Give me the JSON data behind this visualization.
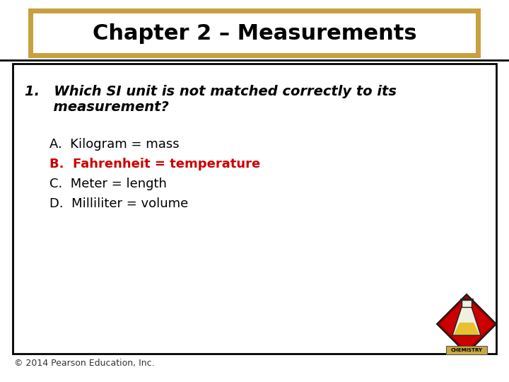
{
  "title": "Chapter 2 – Measurements",
  "title_fontsize": 22,
  "title_color": "#000000",
  "title_box_border_color": "#C8A040",
  "title_box_bg": "#FFFFFF",
  "question_line1": "1.   Which SI unit is not matched correctly to its",
  "question_line2": "      measurement?",
  "question_fontsize": 14,
  "question_color": "#000000",
  "answers": [
    {
      "label": "A.",
      "text": "  Kilogram = mass",
      "color": "#000000",
      "bold": false
    },
    {
      "label": "B.",
      "text": "  Fahrenheit = temperature",
      "color": "#CC0000",
      "bold": true
    },
    {
      "label": "C.",
      "text": "  Meter = length",
      "color": "#000000",
      "bold": false
    },
    {
      "label": "D.",
      "text": "  Milliliter = volume",
      "color": "#000000",
      "bold": false
    }
  ],
  "answer_fontsize": 13,
  "content_box_border_color": "#000000",
  "content_box_bg": "#FFFFFF",
  "bg_color": "#FFFFFF",
  "footer": "© 2014 Pearson Education, Inc.",
  "footer_fontsize": 9,
  "footer_color": "#333333"
}
